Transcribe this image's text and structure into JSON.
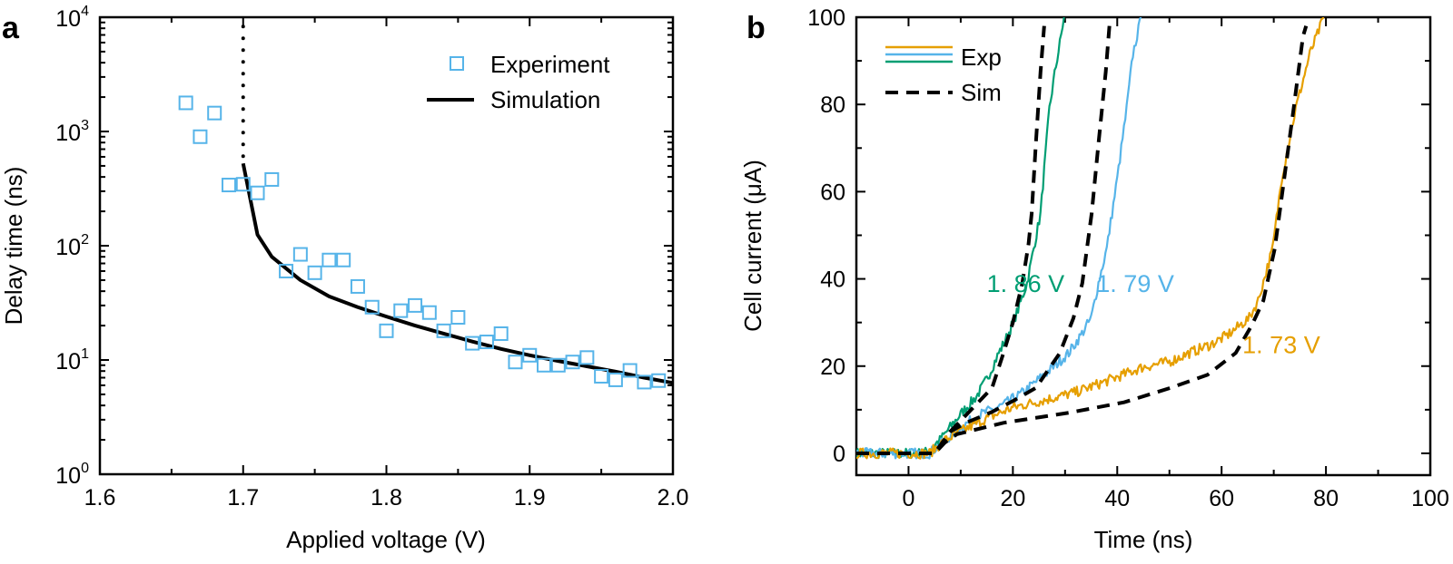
{
  "chart_data": [
    {
      "panel": "a",
      "type": "scatter",
      "xlabel": "Applied voltage (V)",
      "ylabel": "Delay time (ns)",
      "xlim": [
        1.6,
        2.0
      ],
      "ylim": [
        1,
        10000
      ],
      "yscale": "log",
      "grid": false,
      "legend_placement": "top-right",
      "x_ticks": [
        "1.6",
        "1.7",
        "1.8",
        "1.9",
        "2.0"
      ],
      "y_ticks": [
        {
          "base": "10",
          "exp": "0"
        },
        {
          "base": "10",
          "exp": "1"
        },
        {
          "base": "10",
          "exp": "2"
        },
        {
          "base": "10",
          "exp": "3"
        },
        {
          "base": "10",
          "exp": "4"
        }
      ],
      "series": [
        {
          "name": "Experiment",
          "kind": "open-square-markers",
          "color": "#56b4e9",
          "x": [
            1.66,
            1.67,
            1.68,
            1.69,
            1.7,
            1.71,
            1.72,
            1.73,
            1.74,
            1.75,
            1.76,
            1.77,
            1.78,
            1.79,
            1.8,
            1.81,
            1.82,
            1.83,
            1.84,
            1.85,
            1.86,
            1.87,
            1.88,
            1.89,
            1.9,
            1.91,
            1.92,
            1.93,
            1.94,
            1.95,
            1.96,
            1.97,
            1.98,
            1.99
          ],
          "y": [
            1780,
            900,
            1450,
            340,
            345,
            290,
            380,
            60,
            84,
            58,
            75,
            75,
            44,
            29,
            18,
            27,
            30,
            26,
            18,
            23.6,
            14,
            14.4,
            17,
            9.6,
            11,
            9,
            9,
            9.6,
            10.5,
            7.2,
            6.7,
            8.1,
            6.4,
            6.6
          ]
        },
        {
          "name": "Simulation",
          "kind": "line",
          "color": "#000000",
          "x": [
            1.7,
            1.71,
            1.72,
            1.74,
            1.76,
            1.78,
            1.8,
            1.82,
            1.84,
            1.86,
            1.88,
            1.9,
            1.92,
            1.94,
            1.96,
            1.98,
            2.0
          ],
          "y": [
            525,
            125,
            80,
            50,
            36,
            29,
            24,
            20,
            17,
            14.5,
            12.5,
            11,
            9.8,
            8.8,
            7.9,
            7.0,
            6.3
          ]
        }
      ],
      "dotted_extension": {
        "x": 1.7,
        "y_from": 525,
        "y_to": 10000,
        "color": "#000000"
      }
    },
    {
      "panel": "b",
      "type": "line",
      "xlabel": "Time (ns)",
      "ylabel": "Cell current (μA)",
      "xlim": [
        -10,
        100
      ],
      "ylim": [
        -5,
        100
      ],
      "grid": false,
      "legend_placement": "top-left",
      "x_ticks": [
        "0",
        "20",
        "40",
        "60",
        "80",
        "100"
      ],
      "y_ticks": [
        "0",
        "20",
        "40",
        "60",
        "80",
        "100"
      ],
      "legend": [
        {
          "label": "Exp",
          "colors": [
            "#e69f00",
            "#56b4e9",
            "#009e73"
          ],
          "style": "solid"
        },
        {
          "label": "Sim",
          "colors": [
            "#000000"
          ],
          "style": "dashed"
        }
      ],
      "series": [
        {
          "voltage": "1. 86 V",
          "kind": "exp",
          "color": "#009e73",
          "x": [
            -10,
            3,
            6,
            8,
            10,
            13,
            15,
            17.3,
            19,
            21,
            22.7,
            24,
            25.3,
            26,
            27,
            28,
            29,
            29.8
          ],
          "y": [
            0,
            0,
            3,
            6,
            9,
            13,
            17,
            23,
            27,
            33,
            39,
            47,
            55,
            65,
            79,
            87,
            94,
            100
          ]
        },
        {
          "voltage": "1. 86 V",
          "kind": "sim",
          "color": "#000000",
          "x": [
            -10,
            5,
            8,
            12,
            16,
            18.2,
            20,
            21.8,
            23,
            23.6,
            24.4,
            25.3,
            26
          ],
          "y": [
            0,
            0,
            5,
            10,
            15,
            23,
            30,
            39,
            48,
            55,
            71,
            87.5,
            98
          ]
        },
        {
          "voltage": "1. 79 V",
          "kind": "exp",
          "color": "#56b4e9",
          "x": [
            -10,
            4,
            7,
            10,
            14,
            18,
            22,
            27,
            30.7,
            33,
            35,
            36.4,
            38,
            40,
            41.8,
            43,
            44.6
          ],
          "y": [
            0,
            0,
            3,
            6,
            9,
            11,
            14,
            19,
            23,
            27,
            31,
            39,
            47,
            63,
            79,
            91.5,
            100
          ]
        },
        {
          "voltage": "1. 79 V",
          "kind": "sim",
          "color": "#000000",
          "x": [
            -10,
            5,
            8,
            11,
            16,
            20,
            24.4,
            29,
            31.6,
            33.3,
            35.1,
            36.4,
            37.8,
            38.5
          ],
          "y": [
            0,
            0,
            5,
            7,
            9.5,
            12,
            15,
            23,
            31,
            39,
            55,
            71,
            87.5,
            98
          ]
        },
        {
          "voltage": "1. 73 V",
          "kind": "exp",
          "color": "#e69f00",
          "x": [
            -10,
            4,
            7,
            10,
            15,
            20,
            27,
            32,
            37.8,
            45,
            50,
            53.8,
            58,
            61,
            65.3,
            67,
            69.8,
            71.5,
            74.2,
            76.9,
            79.6
          ],
          "y": [
            0,
            0,
            3,
            5,
            8,
            10.5,
            12.5,
            14,
            16.5,
            19.8,
            21,
            23,
            25,
            27,
            31,
            35,
            47,
            63,
            79,
            91.5,
            100
          ]
        },
        {
          "voltage": "1. 73 V",
          "kind": "sim",
          "color": "#000000",
          "x": [
            -10,
            5,
            7,
            9.3,
            18.2,
            30.7,
            41.3,
            50.2,
            57.3,
            62.7,
            65.8,
            68,
            70.2,
            72,
            73.8,
            75.6,
            76.2
          ],
          "y": [
            0,
            0,
            2.5,
            4.4,
            7,
            9.3,
            11.7,
            15,
            18,
            23,
            29.4,
            35,
            47,
            63,
            79,
            95.6,
            98
          ]
        }
      ],
      "annotations": [
        {
          "text": "1. 86 V",
          "color": "#009e73",
          "x": 15,
          "y": 37
        },
        {
          "text": "1. 79 V",
          "color": "#56b4e9",
          "x": 36,
          "y": 37
        },
        {
          "text": "1. 73 V",
          "color": "#e69f00",
          "x": 64,
          "y": 23
        }
      ]
    }
  ],
  "panel_letters": [
    "a",
    "b"
  ]
}
